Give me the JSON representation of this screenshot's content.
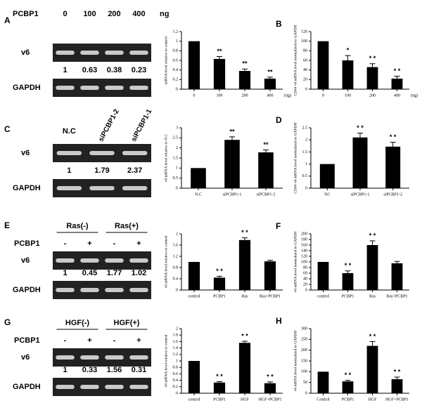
{
  "gels": [
    {
      "panel": "A",
      "header": "PCBP1",
      "lanes": [
        "0",
        "100",
        "200",
        "400"
      ],
      "unit": "ng",
      "rows": [
        "v6",
        "GAPDH"
      ],
      "quant": [
        1,
        0.63,
        0.38,
        0.23
      ]
    },
    {
      "panel": "C",
      "lanes": [
        "N.C",
        "siPCBP1-2",
        "siPCBP1-1"
      ],
      "rows": [
        "v6",
        "GAPDH"
      ],
      "quant": [
        1,
        1.79,
        2.37
      ]
    },
    {
      "panel": "E",
      "groups": [
        "Ras(-)",
        "Ras(+)"
      ],
      "header": "PCBP1",
      "lanes": [
        "-",
        "+",
        "-",
        "+"
      ],
      "rows": [
        "v6",
        "GAPDH"
      ],
      "quant": [
        1,
        0.45,
        1.77,
        1.02
      ]
    },
    {
      "panel": "G",
      "groups": [
        "HGF(-)",
        "HGF(+)"
      ],
      "header": "PCBP1",
      "lanes": [
        "-",
        "+",
        "-",
        "+"
      ],
      "rows": [
        "v6",
        "GAPDH"
      ],
      "quant": [
        1,
        0.33,
        1.56,
        0.31
      ]
    }
  ],
  "chart_data": [
    {
      "type": "bar",
      "ylabel": "mRNA level relative to control",
      "xlabel": "(ng)",
      "categories": [
        "0",
        "100",
        "200",
        "400"
      ],
      "values": [
        1,
        0.63,
        0.38,
        0.22
      ],
      "errors": [
        null,
        0.05,
        0.04,
        0.03
      ],
      "annotations": [
        null,
        "**",
        "**",
        "**"
      ],
      "color": "#000000",
      "ylim": [
        0,
        1.2
      ],
      "yticks": [
        0,
        0.2,
        0.4,
        0.6,
        0.8,
        1,
        1.2
      ]
    },
    {
      "type": "bar",
      "panel": "B",
      "ylabel": "CD44 v6 mRNA level normalized to GAPDH",
      "xlabel": "(ng)",
      "categories": [
        "0",
        "100",
        "200",
        "400"
      ],
      "values": [
        100,
        60,
        46,
        22
      ],
      "errors": [
        null,
        10,
        7,
        5
      ],
      "annotations": [
        null,
        "*",
        "* *",
        "* *"
      ],
      "color": "#000000",
      "ylim": [
        0,
        120
      ],
      "yticks": [
        0,
        20,
        40,
        60,
        80,
        100,
        120
      ]
    },
    {
      "type": "bar",
      "ylabel": "v6 mRNA level relative to N.C",
      "categories": [
        "N.C",
        "siPCBP1-1",
        "siPCBP1-2"
      ],
      "values": [
        1,
        2.4,
        1.78
      ],
      "errors": [
        null,
        0.15,
        0.12
      ],
      "annotations": [
        null,
        "**",
        "**"
      ],
      "color": "#000000",
      "ylim": [
        0,
        3
      ],
      "yticks": [
        0,
        0.5,
        1,
        1.5,
        2,
        2.5,
        3
      ]
    },
    {
      "type": "bar",
      "panel": "D",
      "ylabel": "CD44 v6 mRNA level normalized to GAPDH",
      "categories": [
        "NC",
        "siPCBP1-1",
        "siPCBP1-2"
      ],
      "values": [
        1,
        2.1,
        1.72
      ],
      "errors": [
        null,
        0.18,
        0.18
      ],
      "annotations": [
        null,
        "* *",
        "* *"
      ],
      "color": "#000000",
      "ylim": [
        0,
        2.5
      ],
      "yticks": [
        0,
        0.5,
        1,
        1.5,
        2,
        2.5
      ]
    },
    {
      "type": "bar",
      "ylabel": "v6 mRNA level relative to control",
      "categories": [
        "control",
        "PCBP1",
        "Ras",
        "Ras+PCBP1"
      ],
      "values": [
        1,
        0.44,
        1.78,
        1.02
      ],
      "errors": [
        null,
        0.05,
        0.08,
        0.04
      ],
      "annotations": [
        null,
        "* *",
        "* *",
        null
      ],
      "color": "#000000",
      "ylim": [
        0,
        2
      ],
      "yticks": [
        0,
        0.4,
        0.8,
        1.2,
        1.6,
        2
      ]
    },
    {
      "type": "bar",
      "panel": "F",
      "ylabel": "v6 mRNA level normalized to GAPDH",
      "categories": [
        "control",
        "PCBP1",
        "Ras",
        "Ras+PCBP1"
      ],
      "values": [
        100,
        60,
        160,
        95
      ],
      "errors": [
        null,
        8,
        15,
        7
      ],
      "annotations": [
        null,
        "* *",
        "* *",
        null
      ],
      "color": "#000000",
      "ylim": [
        0,
        200
      ],
      "yticks": [
        0,
        20,
        40,
        60,
        80,
        100,
        120,
        140,
        160,
        180,
        200
      ]
    },
    {
      "type": "bar",
      "ylabel": "v6 mRNA level relative to control",
      "categories": [
        "control",
        "PCBP1",
        "HGF",
        "HGF+PCBP1"
      ],
      "values": [
        1,
        0.33,
        1.56,
        0.31
      ],
      "errors": [
        null,
        0.03,
        0.05,
        0.04
      ],
      "annotations": [
        null,
        "* *",
        "* *",
        "* *"
      ],
      "color": "#000000",
      "ylim": [
        0,
        2
      ],
      "yticks": [
        0,
        0.2,
        0.4,
        0.6,
        0.8,
        1,
        1.2,
        1.4,
        1.6,
        1.8,
        2
      ]
    },
    {
      "type": "bar",
      "panel": "H",
      "ylabel": "v6 mRNA level normalized to GAPDH",
      "categories": [
        "Control",
        "PCBP1",
        "HGF",
        "HGF+PCBP1"
      ],
      "values": [
        100,
        55,
        220,
        65
      ],
      "errors": [
        null,
        5,
        20,
        10
      ],
      "annotations": [
        null,
        "* *",
        "* *",
        "* *"
      ],
      "color": "#000000",
      "ylim": [
        0,
        300
      ],
      "yticks": [
        0,
        50,
        100,
        150,
        200,
        250,
        300
      ]
    }
  ]
}
